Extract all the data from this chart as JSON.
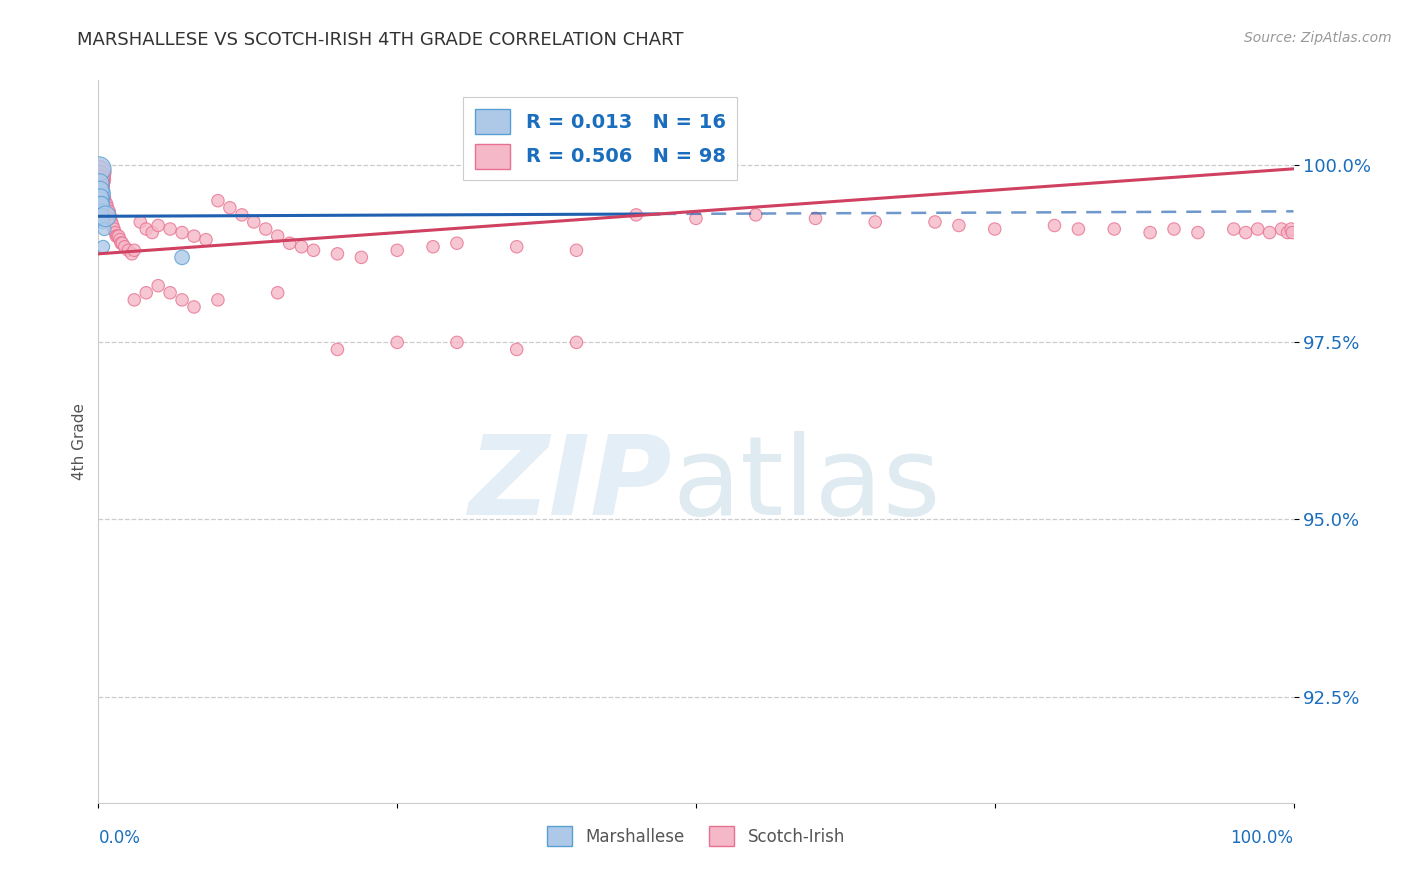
{
  "title": "MARSHALLESE VS SCOTCH-IRISH 4TH GRADE CORRELATION CHART",
  "source": "Source: ZipAtlas.com",
  "ylabel": "4th Grade",
  "legend_blue_label": "Marshallese",
  "legend_pink_label": "Scotch-Irish",
  "blue_R": 0.013,
  "blue_N": 16,
  "pink_R": 0.506,
  "pink_N": 98,
  "blue_fill_color": "#aec9e8",
  "blue_edge_color": "#5a9fd4",
  "pink_fill_color": "#f5b8c8",
  "pink_edge_color": "#e87090",
  "blue_line_color": "#2060b0",
  "pink_line_color": "#d04060",
  "axis_color": "#1a6ebd",
  "ytick_color": "#1a6ebd",
  "ylim": [
    91.0,
    101.2
  ],
  "xlim": [
    0.0,
    100.0
  ],
  "yticks": [
    92.5,
    95.0,
    97.5,
    100.0
  ],
  "ytick_labels": [
    "92.5%",
    "95.0%",
    "97.5%",
    "100.0%"
  ],
  "blue_line_y_at_0": 99.28,
  "blue_line_y_at_100": 99.35,
  "blue_line_solid_end": 47,
  "pink_line_y_at_0": 98.75,
  "pink_line_y_at_100": 99.95,
  "blue_scatter_x": [
    0.05,
    0.08,
    0.1,
    0.12,
    0.15,
    0.18,
    0.2,
    0.22,
    0.25,
    0.28,
    0.3,
    0.35,
    0.4,
    0.5,
    0.6,
    7.0
  ],
  "blue_scatter_y": [
    99.95,
    99.6,
    99.75,
    99.5,
    99.65,
    99.55,
    99.45,
    99.35,
    99.45,
    99.25,
    99.3,
    99.2,
    98.85,
    99.1,
    99.28,
    98.7
  ],
  "blue_scatter_size": [
    300,
    250,
    180,
    200,
    160,
    140,
    120,
    110,
    130,
    100,
    90,
    95,
    85,
    90,
    220,
    110
  ],
  "pink_scatter_x": [
    0.05,
    0.08,
    0.1,
    0.12,
    0.15,
    0.18,
    0.2,
    0.22,
    0.25,
    0.28,
    0.3,
    0.35,
    0.4,
    0.45,
    0.5,
    0.55,
    0.6,
    0.65,
    0.7,
    0.75,
    0.8,
    0.85,
    0.9,
    0.95,
    1.0,
    1.1,
    1.2,
    1.3,
    1.4,
    1.5,
    1.6,
    1.7,
    1.8,
    1.9,
    2.0,
    2.2,
    2.5,
    2.8,
    3.0,
    3.5,
    4.0,
    4.5,
    5.0,
    6.0,
    7.0,
    8.0,
    9.0,
    10.0,
    11.0,
    12.0,
    13.0,
    14.0,
    15.0,
    16.0,
    17.0,
    18.0,
    20.0,
    22.0,
    25.0,
    28.0,
    30.0,
    35.0,
    40.0,
    45.0,
    50.0,
    55.0,
    60.0,
    65.0,
    70.0,
    72.0,
    75.0,
    80.0,
    82.0,
    85.0,
    88.0,
    90.0,
    92.0,
    95.0,
    96.0,
    97.0,
    98.0,
    99.0,
    99.5,
    99.8,
    99.9,
    20.0,
    25.0,
    30.0,
    35.0,
    40.0,
    3.0,
    4.0,
    5.0,
    6.0,
    7.0,
    8.0,
    10.0,
    15.0
  ],
  "pink_scatter_y": [
    99.9,
    99.8,
    99.85,
    99.75,
    99.8,
    99.7,
    99.75,
    99.65,
    99.7,
    99.6,
    99.65,
    99.6,
    99.55,
    99.5,
    99.55,
    99.5,
    99.45,
    99.4,
    99.45,
    99.4,
    99.35,
    99.3,
    99.35,
    99.3,
    99.25,
    99.2,
    99.15,
    99.1,
    99.05,
    99.0,
    99.0,
    99.0,
    98.95,
    98.9,
    98.9,
    98.85,
    98.8,
    98.75,
    98.8,
    99.2,
    99.1,
    99.05,
    99.15,
    99.1,
    99.05,
    99.0,
    98.95,
    99.5,
    99.4,
    99.3,
    99.2,
    99.1,
    99.0,
    98.9,
    98.85,
    98.8,
    98.75,
    98.7,
    98.8,
    98.85,
    98.9,
    98.85,
    98.8,
    99.3,
    99.25,
    99.3,
    99.25,
    99.2,
    99.2,
    99.15,
    99.1,
    99.15,
    99.1,
    99.1,
    99.05,
    99.1,
    99.05,
    99.1,
    99.05,
    99.1,
    99.05,
    99.1,
    99.05,
    99.1,
    99.05,
    97.4,
    97.5,
    97.5,
    97.4,
    97.5,
    98.1,
    98.2,
    98.3,
    98.2,
    98.1,
    98.0,
    98.1,
    98.2
  ],
  "pink_scatter_size": [
    300,
    260,
    220,
    200,
    180,
    160,
    140,
    130,
    120,
    110,
    100,
    90,
    85,
    80,
    80,
    80,
    80,
    80,
    80,
    80,
    80,
    80,
    80,
    80,
    80,
    80,
    80,
    80,
    80,
    80,
    80,
    80,
    80,
    80,
    80,
    80,
    80,
    80,
    80,
    80,
    80,
    80,
    80,
    80,
    80,
    80,
    80,
    80,
    80,
    80,
    80,
    80,
    80,
    80,
    80,
    80,
    80,
    80,
    80,
    80,
    80,
    80,
    80,
    80,
    80,
    80,
    80,
    80,
    80,
    80,
    80,
    80,
    80,
    80,
    80,
    80,
    80,
    80,
    80,
    80,
    80,
    80,
    80,
    80,
    80,
    80,
    80,
    80,
    80,
    80,
    80,
    80,
    80,
    80,
    80,
    80,
    80,
    80
  ]
}
